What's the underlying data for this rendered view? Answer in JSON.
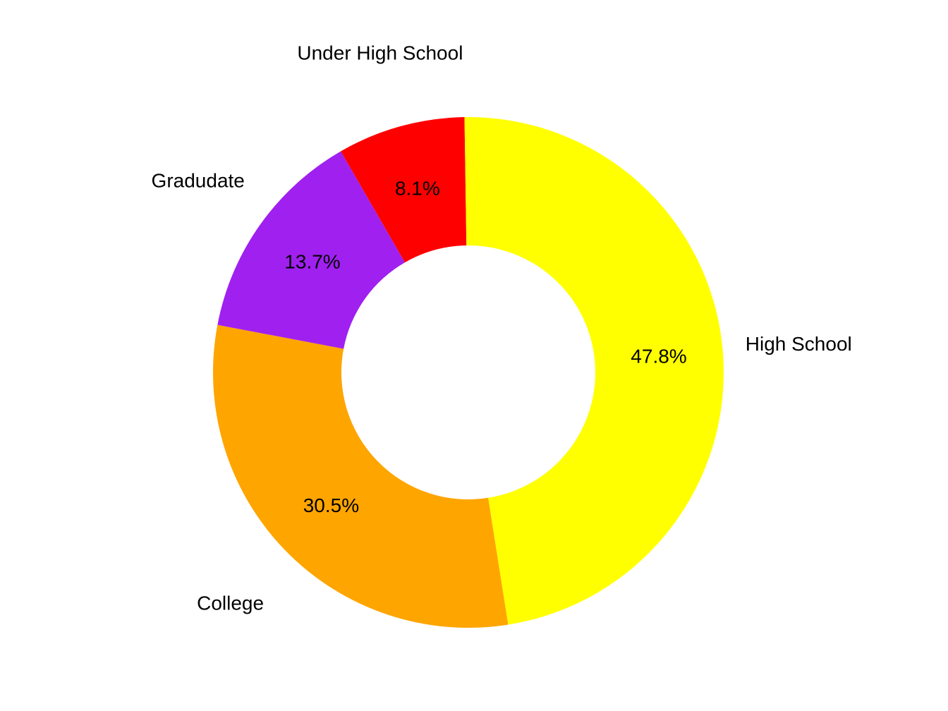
{
  "chart_data": {
    "type": "pie",
    "style": "donut",
    "slices": [
      {
        "label": "Under High School",
        "value": 8.1,
        "value_label": "8.1%",
        "color": "#FF0000"
      },
      {
        "label": "High School",
        "value": 47.8,
        "value_label": "47.8%",
        "color": "#FFFF00"
      },
      {
        "label": "College",
        "value": 30.5,
        "value_label": "30.5%",
        "color": "#FFA500"
      },
      {
        "label": "Gradudate",
        "value": 13.7,
        "value_label": "13.7%",
        "color": "#A020F0"
      }
    ],
    "legend": "none",
    "background": "#FFFFFF"
  }
}
